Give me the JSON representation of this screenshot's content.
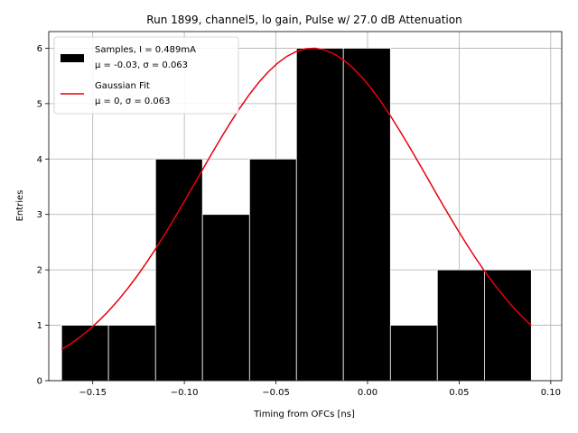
{
  "chart_data": {
    "type": "bar",
    "title": "Run 1899, channel5, lo gain, Pulse w/ 27.0 dB Attenuation",
    "xlabel": "Timing from OFCs [ns]",
    "ylabel": "Entries",
    "xlim": [
      -0.174,
      0.106
    ],
    "ylim": [
      0,
      6.3
    ],
    "grid": true,
    "legend_position": "top-left",
    "x_ticks": [
      -0.15,
      -0.1,
      -0.05,
      0.0,
      0.05,
      0.1
    ],
    "x_tick_labels": [
      "−0.15",
      "−0.10",
      "−0.05",
      "0.00",
      "0.05",
      "0.10"
    ],
    "y_ticks": [
      0,
      1,
      2,
      3,
      4,
      5,
      6
    ],
    "y_tick_labels": [
      "0",
      "1",
      "2",
      "3",
      "4",
      "5",
      "6"
    ],
    "histogram": {
      "name": "Samples",
      "color": "#000000",
      "edgecolor": "#ffffff",
      "bins": [
        {
          "x0": -0.167,
          "x1": -0.1414,
          "count": 1
        },
        {
          "x0": -0.1414,
          "x1": -0.1157,
          "count": 1
        },
        {
          "x0": -0.1157,
          "x1": -0.0901,
          "count": 4
        },
        {
          "x0": -0.0901,
          "x1": -0.0644,
          "count": 3
        },
        {
          "x0": -0.0644,
          "x1": -0.0388,
          "count": 4
        },
        {
          "x0": -0.0388,
          "x1": -0.0132,
          "count": 6
        },
        {
          "x0": -0.0132,
          "x1": 0.0125,
          "count": 6
        },
        {
          "x0": 0.0125,
          "x1": 0.0381,
          "count": 1
        },
        {
          "x0": 0.0381,
          "x1": 0.0638,
          "count": 2
        },
        {
          "x0": 0.0638,
          "x1": 0.0894,
          "count": 2
        }
      ]
    },
    "fit": {
      "name": "Gaussian Fit",
      "color": "#e8000b",
      "amplitude": 6.0,
      "mean": -0.03,
      "sigma": 0.063,
      "x_range": [
        -0.167,
        0.0894
      ]
    },
    "legend": [
      {
        "type": "patch",
        "color": "#000000",
        "line1": "Samples, I = 0.489mA",
        "line2": "μ = -0.03, σ = 0.063"
      },
      {
        "type": "line",
        "color": "#e8000b",
        "line1": "Gaussian Fit",
        "line2": "μ = 0, σ = 0.063"
      }
    ]
  }
}
